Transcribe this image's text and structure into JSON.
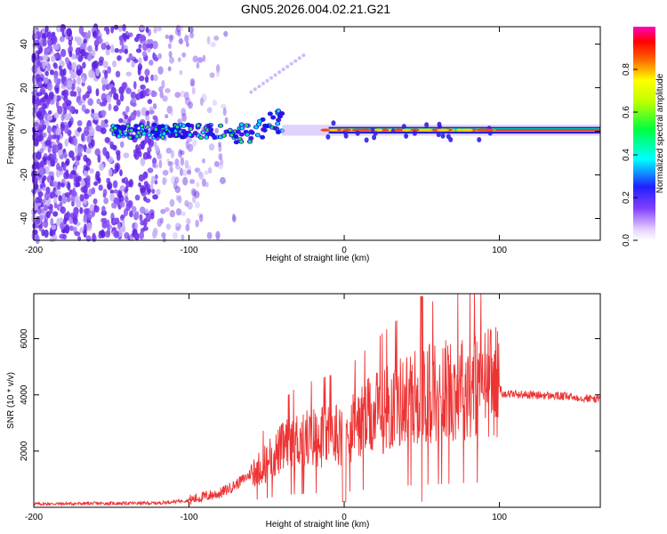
{
  "title": "GN05.2026.004.02.21.G21",
  "colorbar": {
    "label": "Normalized spectral amplitude",
    "ticks": [
      "0.0",
      "0.2",
      "0.4",
      "0.6",
      "0.8"
    ],
    "tick_values": [
      0.0,
      0.2,
      0.4,
      0.6,
      0.8
    ],
    "range": [
      0,
      1
    ]
  },
  "chart_data": [
    {
      "type": "heatmap",
      "title": "GN05.2026.004.02.21.G21",
      "xlabel": "Height of straight line (km)",
      "ylabel": "Frequency (Hz)",
      "xlim": [
        -200,
        165
      ],
      "ylim": [
        -50,
        48
      ],
      "x_ticks": [
        -200,
        -100,
        0,
        100
      ],
      "x_tick_labels": [
        "-200",
        "-100",
        "0",
        "100"
      ],
      "y_ticks": [
        -40,
        -20,
        0,
        20,
        40
      ],
      "y_tick_labels": [
        "-40",
        "-20",
        "0",
        "20",
        "40"
      ],
      "colormap": "rainbow (white-purple-blue-cyan-green-yellow-red-magenta)",
      "description_values": {
        "noise_region_x": [
          -200,
          -85
        ],
        "dominant_frequency_hz": 0.5,
        "strong_signal_from_x": 0
      }
    },
    {
      "type": "line",
      "xlabel": "Height of straight line (km)",
      "ylabel": "SNR (10 * v/v)",
      "xlim": [
        -200,
        165
      ],
      "ylim": [
        0,
        7600
      ],
      "x_ticks": [
        -200,
        -100,
        0,
        100
      ],
      "x_tick_labels": [
        "-200",
        "-100",
        "0",
        "100"
      ],
      "y_ticks": [
        2000,
        4000,
        6000
      ],
      "y_tick_labels": [
        "2000",
        "4000",
        "6000"
      ],
      "color": "#ee3333",
      "series": [
        {
          "name": "SNR",
          "envelope_x": [
            -200,
            -120,
            -100,
            -90,
            -80,
            -70,
            -60,
            -50,
            -40,
            -30,
            -20,
            -10,
            0,
            10,
            20,
            30,
            40,
            50,
            60,
            70,
            80,
            90,
            98,
            102,
            120,
            140,
            165
          ],
          "envelope_y": [
            120,
            150,
            250,
            380,
            500,
            800,
            1200,
            1600,
            2100,
            2400,
            2500,
            2600,
            2700,
            3000,
            3300,
            3600,
            3850,
            4000,
            4100,
            4200,
            4350,
            4450,
            4500,
            4050,
            4000,
            3950,
            3850
          ]
        }
      ]
    }
  ]
}
